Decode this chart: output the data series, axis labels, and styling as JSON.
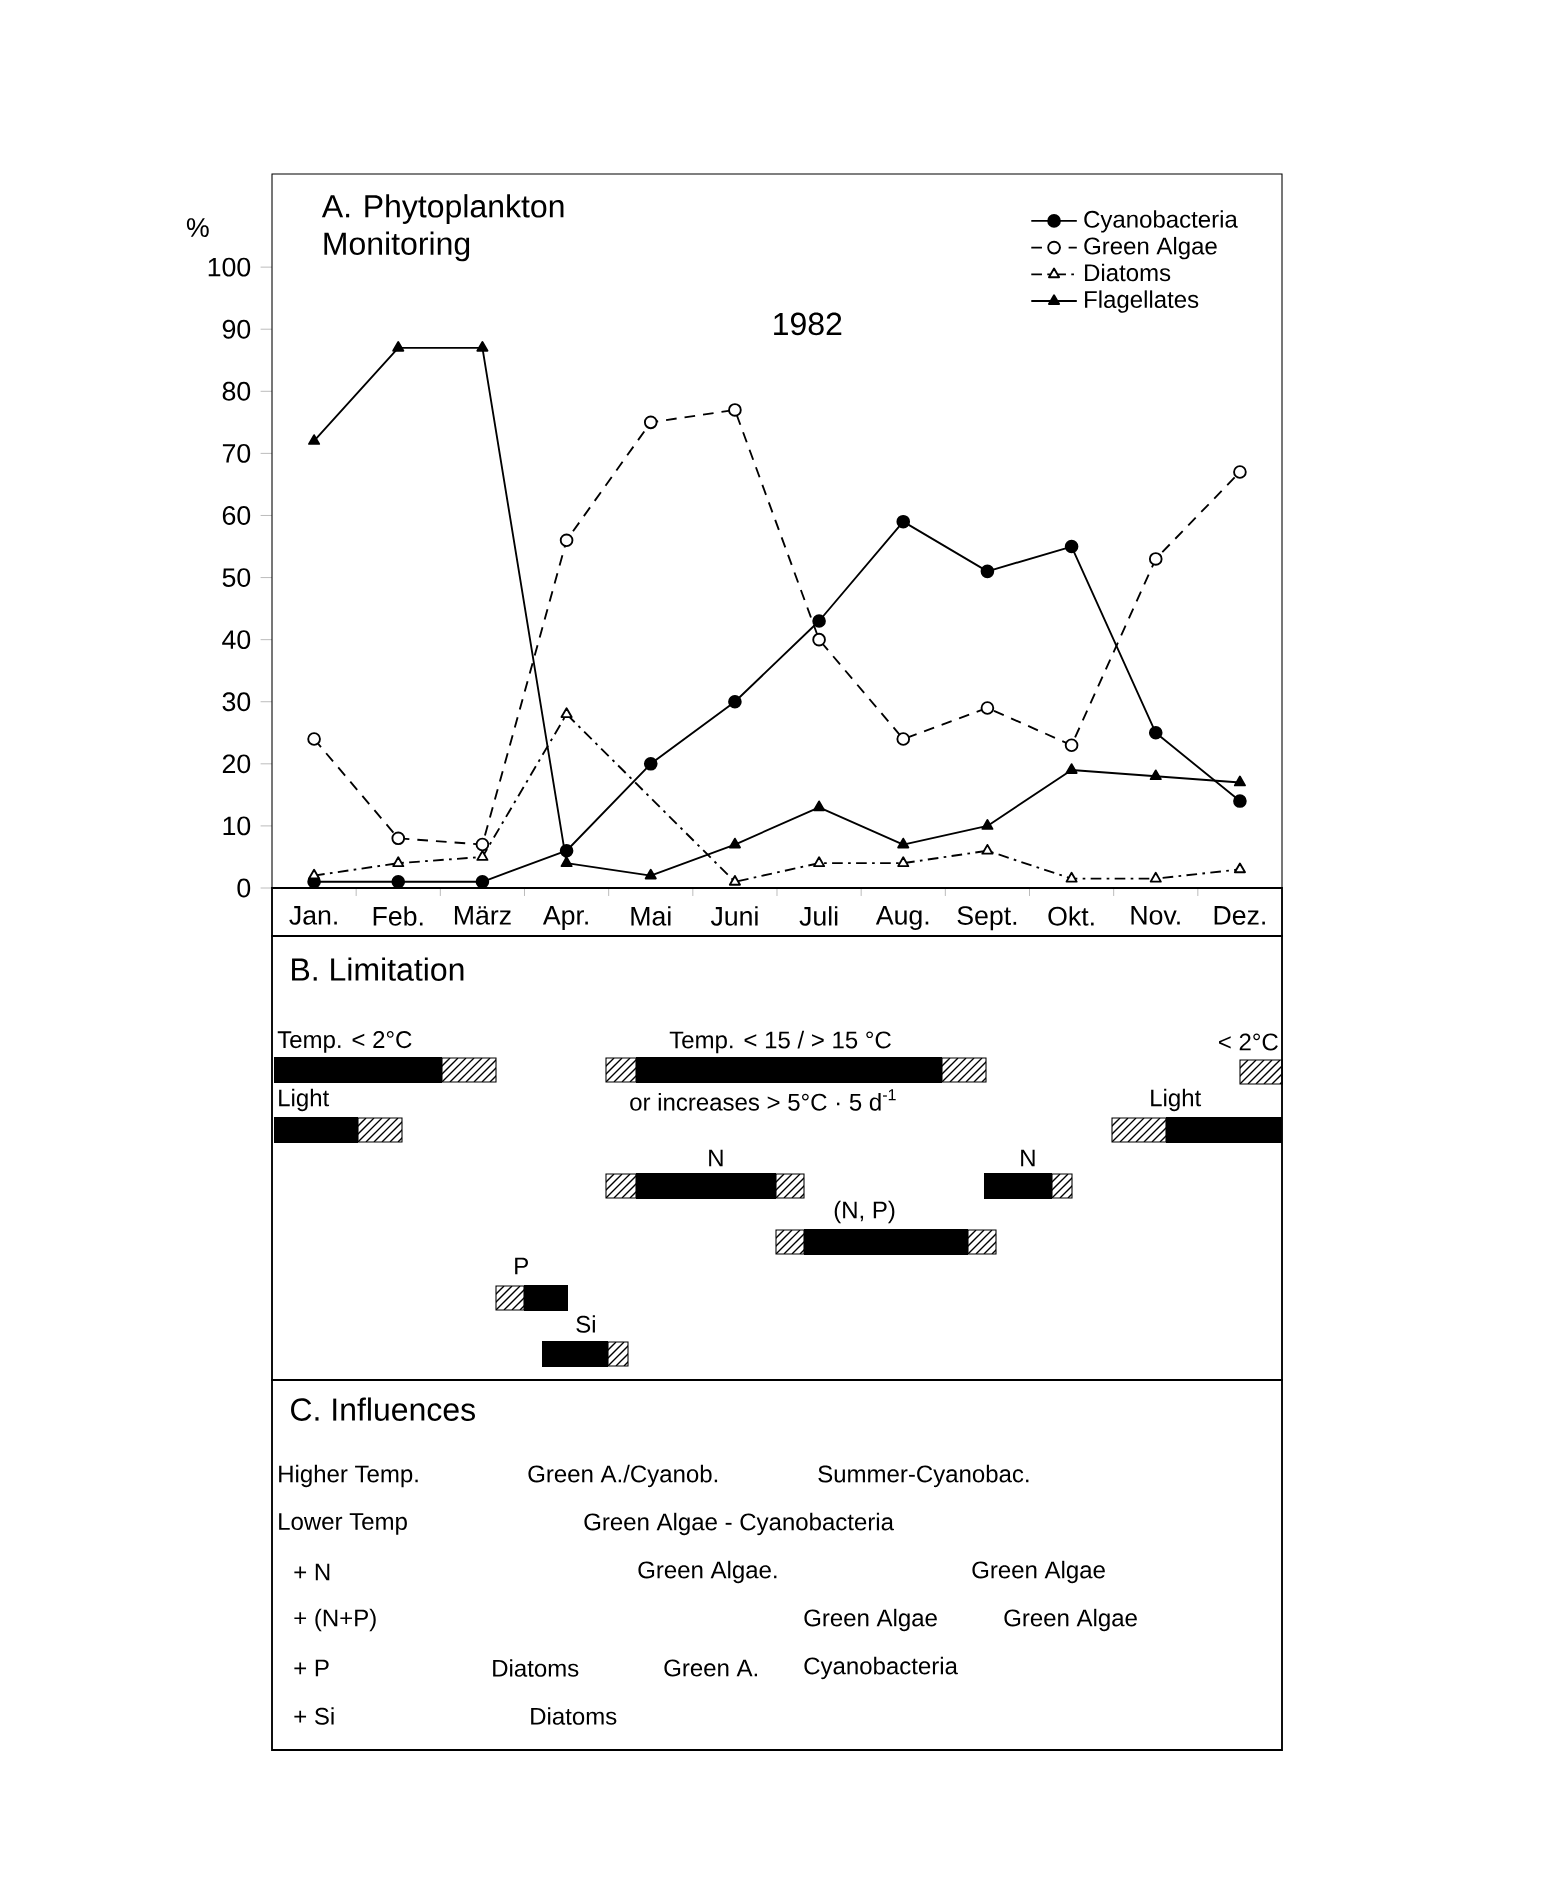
{
  "chart_data": [
    {
      "type": "line",
      "title": "A. Phytoplankton Monitoring",
      "ylabel": "%",
      "categories": [
        "Jan.",
        "Feb.",
        "März",
        "Apr.",
        "Mai",
        "Juni",
        "Juli",
        "Aug.",
        "Sept.",
        "Okt.",
        "Nov.",
        "Dez."
      ],
      "ylim": [
        0,
        115
      ],
      "yticks": [
        0,
        10,
        20,
        30,
        40,
        50,
        60,
        70,
        80,
        90,
        100
      ],
      "legend": "top right",
      "annotations": [
        "1982"
      ],
      "series": [
        {
          "name": "Cyanobacteria",
          "color": "#000000",
          "marker": "circle",
          "line_style": "solid",
          "values": [
            1,
            1,
            1,
            6,
            20,
            30,
            43,
            59,
            51,
            55,
            25,
            14
          ]
        },
        {
          "name": "Green Algae",
          "color": "#000000",
          "marker": "circle",
          "line_style": "dashed",
          "values": [
            24,
            8,
            7,
            56,
            75,
            77,
            40,
            24,
            29,
            23,
            53,
            67
          ]
        },
        {
          "name": "Diatoms",
          "color": "#000000",
          "marker": "triangle",
          "line_style": "dashdot",
          "values": [
            2,
            4,
            5,
            28,
            null,
            1,
            4,
            4,
            6,
            1.5,
            1.5,
            3
          ]
        },
        {
          "name": "Flagellates",
          "color": "#000000",
          "marker": "triangle",
          "line_style": "solid",
          "values": [
            72,
            87,
            87,
            4,
            2,
            7,
            13,
            7,
            10,
            19,
            18,
            17
          ]
        }
      ]
    },
    {
      "type": "other",
      "title": "B. Limitation",
      "annotations": [
        "Temp. < 2°C",
        "Temp. < 15 / > 15 °C",
        "< 2°C",
        "Light",
        "or increases > 5°C · 5 d$^{-1}$",
        "Light",
        "N",
        "N",
        "(N, P)",
        "P",
        "Si"
      ]
    },
    {
      "type": "other",
      "title": "C. Influences",
      "annotations": [
        "Higher Temp.",
        "Green A./Cyanob.",
        "Summer-Cyanobac.",
        "Lower Temp",
        "Green Algae  -  Cyanobacteria",
        "+ N",
        "Green Algae.",
        "Green Algae",
        "+ (N+P)",
        "Green Algae",
        "Green Algae",
        "+ P",
        "Diatoms",
        "Green A.",
        "Cyanobacteria",
        "+ Si",
        "Diatoms"
      ]
    }
  ]
}
